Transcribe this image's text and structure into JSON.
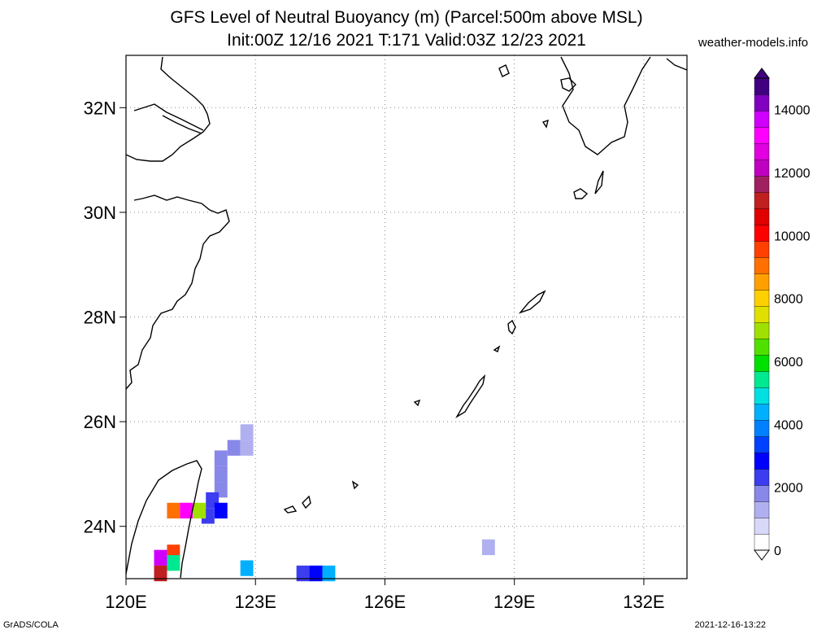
{
  "title": {
    "line1": "GFS Level of Neutral Buoyancy (m) (Parcel:500m above MSL)",
    "line2": "Init:00Z 12/16 2021 T:171 Valid:03Z 12/23 2021"
  },
  "site": "weather-models.info",
  "footer": {
    "left": "GrADS/COLA",
    "right": "2021-12-16-13:22"
  },
  "map": {
    "lon_range": [
      120,
      133
    ],
    "lat_range": [
      23,
      33
    ],
    "lon_ticks": [
      {
        "value": 120,
        "label": "120E"
      },
      {
        "value": 123,
        "label": "123E"
      },
      {
        "value": 126,
        "label": "126E"
      },
      {
        "value": 129,
        "label": "129E"
      },
      {
        "value": 132,
        "label": "132E"
      }
    ],
    "lat_ticks": [
      {
        "value": 24,
        "label": "24N"
      },
      {
        "value": 26,
        "label": "26N"
      },
      {
        "value": 28,
        "label": "28N"
      },
      {
        "value": 30,
        "label": "30N"
      },
      {
        "value": 32,
        "label": "32N"
      }
    ],
    "grid": true,
    "data_cells": [
      {
        "lon": 122.8,
        "lat": 25.8,
        "value": 1500
      },
      {
        "lon": 122.5,
        "lat": 25.5,
        "value": 1600
      },
      {
        "lon": 122.8,
        "lat": 25.5,
        "value": 1400
      },
      {
        "lon": 122.2,
        "lat": 25.3,
        "value": 1800
      },
      {
        "lon": 122.2,
        "lat": 25.0,
        "value": 1900
      },
      {
        "lon": 122.2,
        "lat": 24.7,
        "value": 2000
      },
      {
        "lon": 122.0,
        "lat": 24.5,
        "value": 2200
      },
      {
        "lon": 122.2,
        "lat": 24.3,
        "value": 2600
      },
      {
        "lon": 121.9,
        "lat": 24.2,
        "value": 2400
      },
      {
        "lon": 121.1,
        "lat": 24.3,
        "value": 9000
      },
      {
        "lon": 121.4,
        "lat": 24.3,
        "value": 13000
      },
      {
        "lon": 121.7,
        "lat": 24.3,
        "value": 7000
      },
      {
        "lon": 121.1,
        "lat": 23.5,
        "value": 9500
      },
      {
        "lon": 121.1,
        "lat": 23.3,
        "value": 5500
      },
      {
        "lon": 120.8,
        "lat": 23.4,
        "value": 13500
      },
      {
        "lon": 120.8,
        "lat": 23.1,
        "value": 11000
      },
      {
        "lon": 122.8,
        "lat": 23.2,
        "value": 4200
      },
      {
        "lon": 124.1,
        "lat": 23.1,
        "value": 2400
      },
      {
        "lon": 124.4,
        "lat": 23.1,
        "value": 3000
      },
      {
        "lon": 124.7,
        "lat": 23.1,
        "value": 4500
      },
      {
        "lon": 128.4,
        "lat": 23.6,
        "value": 1500
      }
    ]
  },
  "colorbar": {
    "labels": [
      "0",
      "2000",
      "4000",
      "6000",
      "8000",
      "10000",
      "12000",
      "14000"
    ],
    "colors": [
      "#ffffff",
      "#d8d8f8",
      "#b0b0f0",
      "#8888e8",
      "#3c3cf0",
      "#0000ff",
      "#0040ff",
      "#0080ff",
      "#00b0ff",
      "#00e0e0",
      "#00e890",
      "#00e000",
      "#50e000",
      "#a0e000",
      "#e0e000",
      "#ffd000",
      "#ffa000",
      "#ff7000",
      "#ff4000",
      "#ff0000",
      "#e00000",
      "#c02020",
      "#a02060",
      "#c000c0",
      "#e000e0",
      "#ff00ff",
      "#d000ff",
      "#8000c0",
      "#400080"
    ]
  }
}
